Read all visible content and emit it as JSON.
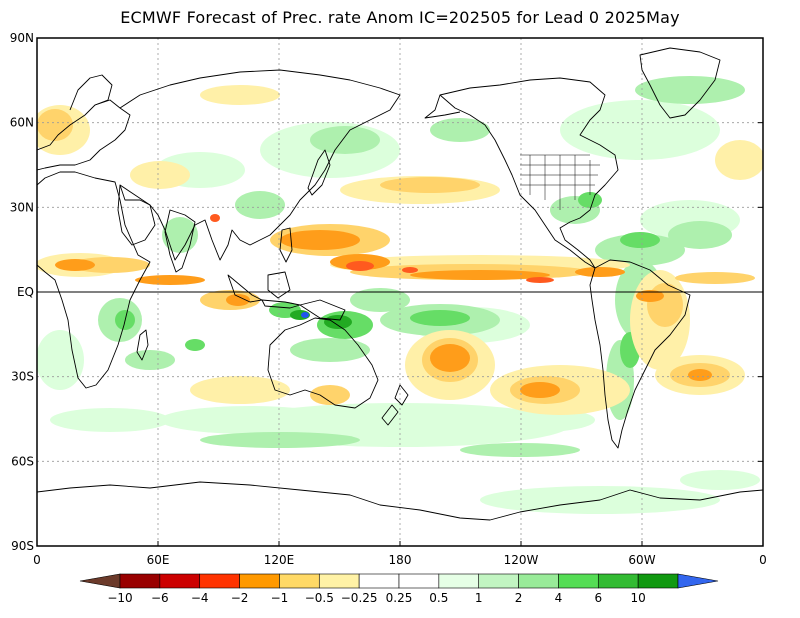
{
  "title": "ECMWF Forecast of Prec. rate Anom IC=202505 for Lead 0 2025May",
  "map": {
    "lat_labels": [
      "90N",
      "60N",
      "30N",
      "EQ",
      "30S",
      "60S",
      "90S"
    ],
    "lon_labels": [
      "0",
      "60E",
      "120E",
      "180",
      "120W",
      "60W",
      "0"
    ]
  },
  "colorbar": {
    "labels": [
      "-10",
      "-6",
      "-4",
      "-2",
      "-1",
      "-0.5",
      "-0.25",
      "0.25",
      "0.5",
      "1",
      "2",
      "4",
      "6",
      "10"
    ],
    "colors": [
      "#6b3a2a",
      "#990000",
      "#cc0000",
      "#ff3300",
      "#ff9900",
      "#ffd966",
      "#fff2a6",
      "#ffffff",
      "#ffffff",
      "#e6ffe6",
      "#c2f5c2",
      "#99eb99",
      "#55dd55",
      "#33bb33",
      "#119911",
      "#3366ee"
    ]
  },
  "colors": {
    "dry_strong": "#ff5a1f",
    "dry_mid": "#ff9d1a",
    "dry_light": "#ffd36b",
    "dry_faint": "#fff0a8",
    "wet_faint": "#dcffdc",
    "wet_light": "#aef0ae",
    "wet_mid": "#66dd66",
    "wet_strong": "#22aa22",
    "wet_max": "#2255ee"
  }
}
